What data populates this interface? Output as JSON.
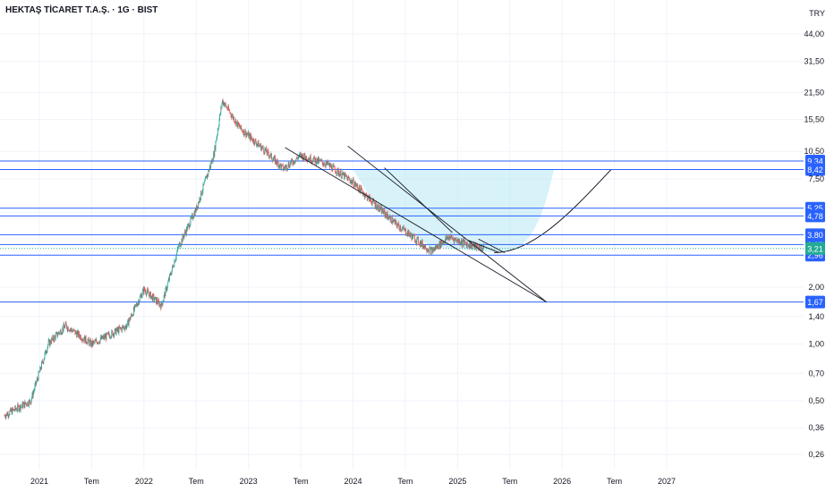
{
  "header": {
    "title": "HEKTAŞ TİCARET T.A.Ş. · 1G · BIST",
    "currency": "TRY"
  },
  "colors": {
    "level_line": "#2962ff",
    "up": "#26a69a",
    "down": "#ef5350",
    "current": "#22ab94",
    "cup_fill": "#b2e5f4",
    "pattern": "#131722"
  },
  "chart_data": {
    "type": "candlestick",
    "scale": "log",
    "y_tick_labels": [
      "44,00",
      "31,50",
      "21,50",
      "15,50",
      "10,50",
      "7,50",
      "5,00",
      "3,50",
      "2,00",
      "1,40",
      "1,00",
      "0,70",
      "0,50",
      "0,36",
      "0,26"
    ],
    "x_tick_labels": [
      "2021",
      "Tem",
      "2022",
      "Tem",
      "2023",
      "Tem",
      "2024",
      "Tem",
      "2025",
      "Tem",
      "2026",
      "Tem",
      "2027"
    ],
    "horizontal_levels": [
      {
        "label": "9,34",
        "value": 9.34
      },
      {
        "label": "8,42",
        "value": 8.42
      },
      {
        "label": "5,25",
        "value": 5.25
      },
      {
        "label": "4,78",
        "value": 4.78
      },
      {
        "label": "3,80",
        "value": 3.8
      },
      {
        "label": "3,37",
        "value": 3.37
      },
      {
        "label": "2,96",
        "value": 2.96
      },
      {
        "label": "1,67",
        "value": 1.67
      }
    ],
    "current_price": {
      "label": "3,21",
      "value": 3.21
    },
    "price_path": [
      {
        "date": "2020-09",
        "close": 0.42
      },
      {
        "date": "2020-12",
        "close": 0.5
      },
      {
        "date": "2021-02",
        "close": 1.0
      },
      {
        "date": "2021-04",
        "close": 1.25
      },
      {
        "date": "2021-07",
        "close": 1.0
      },
      {
        "date": "2021-11",
        "close": 1.25
      },
      {
        "date": "2022-01",
        "close": 1.95
      },
      {
        "date": "2022-03",
        "close": 1.6
      },
      {
        "date": "2022-05",
        "close": 3.3
      },
      {
        "date": "2022-07",
        "close": 5.2
      },
      {
        "date": "2022-09",
        "close": 10.0
      },
      {
        "date": "2022-10",
        "close": 19.5
      },
      {
        "date": "2022-12",
        "close": 14.0
      },
      {
        "date": "2023-03",
        "close": 10.5
      },
      {
        "date": "2023-05",
        "close": 8.5
      },
      {
        "date": "2023-07",
        "close": 10.0
      },
      {
        "date": "2023-10",
        "close": 9.0
      },
      {
        "date": "2024-01",
        "close": 7.2
      },
      {
        "date": "2024-03",
        "close": 5.8
      },
      {
        "date": "2024-06",
        "close": 4.3
      },
      {
        "date": "2024-10",
        "close": 3.1
      },
      {
        "date": "2024-12",
        "close": 3.7
      },
      {
        "date": "2025-02",
        "close": 3.4
      },
      {
        "date": "2025-04",
        "close": 3.2
      }
    ]
  }
}
